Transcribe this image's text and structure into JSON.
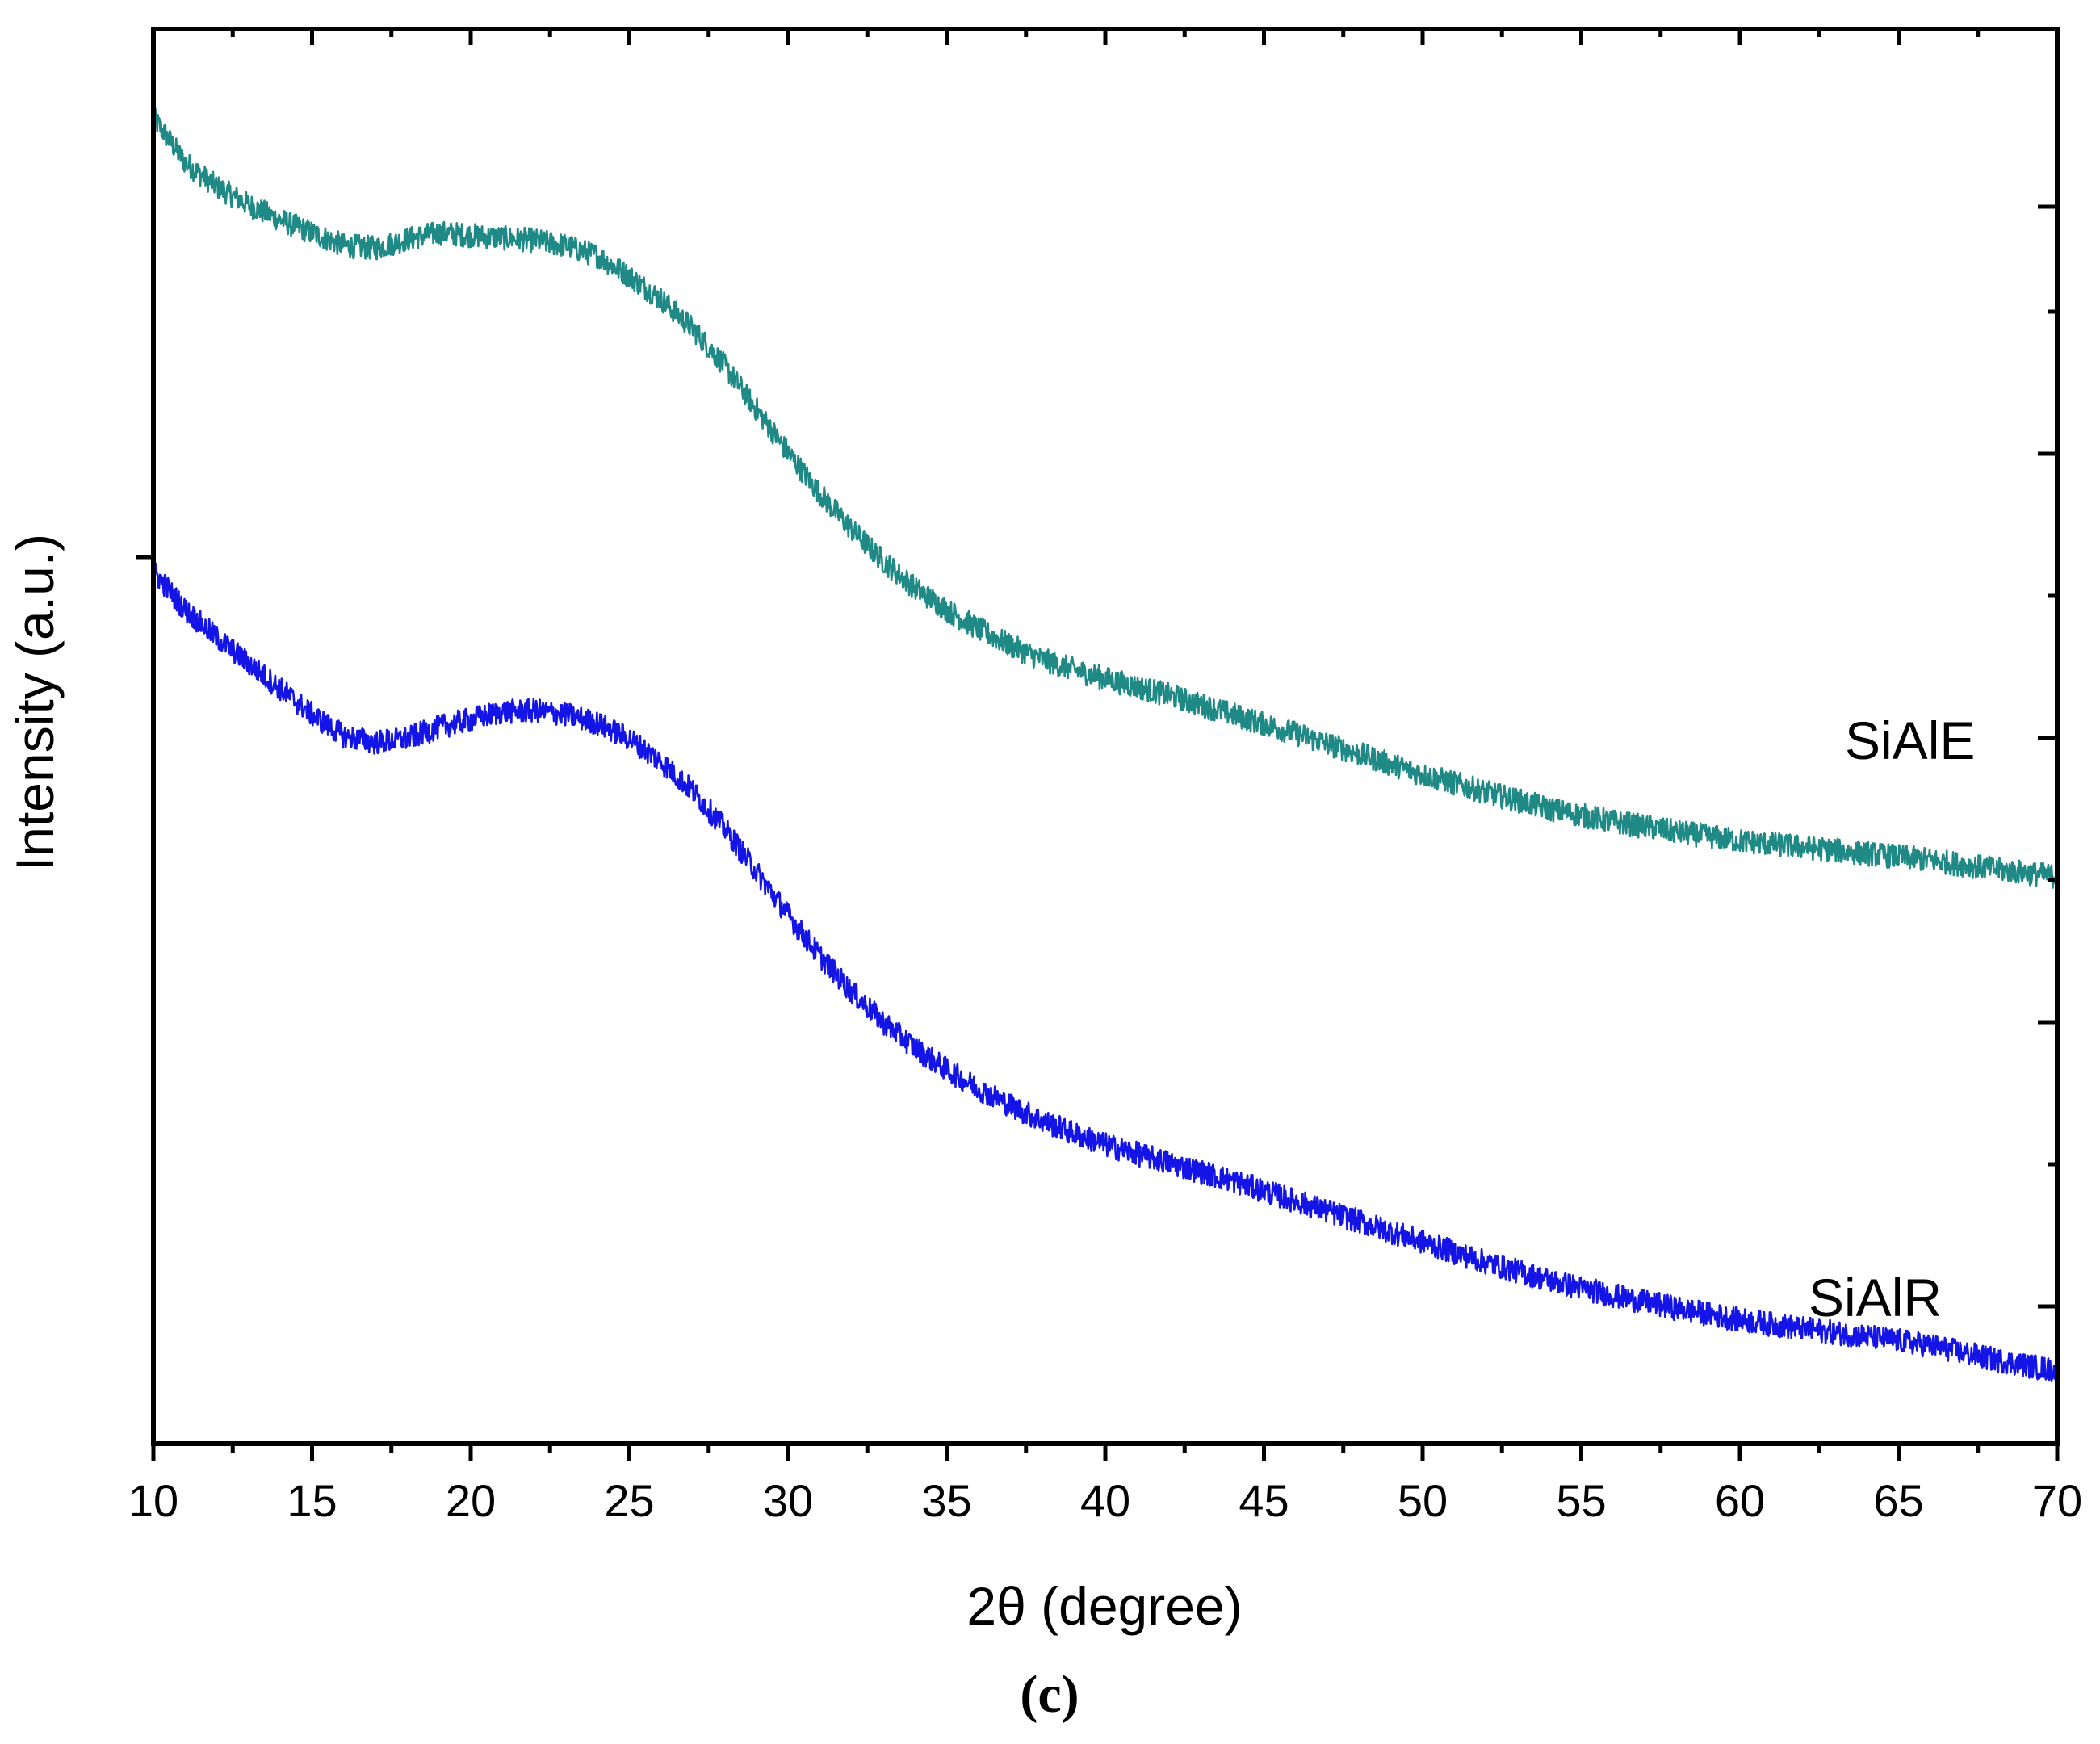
{
  "chart_data": {
    "type": "line",
    "title": "",
    "xlabel": "2θ (degree)",
    "ylabel": "Intensity (a.u.)",
    "xlim": [
      10,
      70
    ],
    "ylim": [
      0,
      100
    ],
    "x_ticks": [
      10,
      15,
      20,
      25,
      30,
      35,
      40,
      45,
      50,
      55,
      60,
      65,
      70
    ],
    "grid": false,
    "caption": "(c)",
    "series": [
      {
        "name": "SiAlE",
        "label": "SiAlE",
        "color": "#1f8a85",
        "points": [
          [
            10,
            100
          ],
          [
            11,
            96.5
          ],
          [
            12,
            94.6
          ],
          [
            13,
            93.2
          ],
          [
            14,
            92.0
          ],
          [
            15,
            91.0
          ],
          [
            16,
            90.0
          ],
          [
            17,
            89.8
          ],
          [
            18,
            90.5
          ],
          [
            19,
            91.0
          ],
          [
            20,
            90.8
          ],
          [
            21,
            90.6
          ],
          [
            22,
            90.4
          ],
          [
            23,
            90.0
          ],
          [
            24,
            89.2
          ],
          [
            25,
            87.6
          ],
          [
            26,
            85.8
          ],
          [
            27,
            83.5
          ],
          [
            28,
            80.6
          ],
          [
            29,
            77.2
          ],
          [
            30,
            73.8
          ],
          [
            31,
            70.6
          ],
          [
            32,
            67.8
          ],
          [
            33,
            65.3
          ],
          [
            34,
            63.2
          ],
          [
            35,
            61.5
          ],
          [
            36,
            60.0
          ],
          [
            37,
            58.7
          ],
          [
            38,
            57.6
          ],
          [
            39,
            56.8
          ],
          [
            40,
            56.1
          ],
          [
            42,
            54.8
          ],
          [
            44,
            53.3
          ],
          [
            46,
            51.8
          ],
          [
            48,
            50.2
          ],
          [
            50,
            48.6
          ],
          [
            52,
            47.2
          ],
          [
            54,
            45.9
          ],
          [
            56,
            44.9
          ],
          [
            58,
            44.1
          ],
          [
            60,
            43.4
          ],
          [
            62,
            42.9
          ],
          [
            64,
            42.4
          ],
          [
            66,
            41.9
          ],
          [
            68,
            41.2
          ],
          [
            70,
            40.6
          ]
        ]
      },
      {
        "name": "SiAlR",
        "label": "SiAlR",
        "color": "#1414e6",
        "points": [
          [
            10,
            64.5
          ],
          [
            11,
            61.5
          ],
          [
            12,
            59.3
          ],
          [
            13,
            57.3
          ],
          [
            14,
            55.3
          ],
          [
            15,
            53.3
          ],
          [
            16,
            51.6
          ],
          [
            17,
            51.1
          ],
          [
            18,
            51.4
          ],
          [
            19,
            52.3
          ],
          [
            20,
            52.9
          ],
          [
            21,
            53.5
          ],
          [
            22,
            53.6
          ],
          [
            23,
            53.3
          ],
          [
            24,
            52.6
          ],
          [
            25,
            51.4
          ],
          [
            26,
            49.6
          ],
          [
            27,
            47.3
          ],
          [
            28,
            44.4
          ],
          [
            29,
            41.0
          ],
          [
            30,
            37.6
          ],
          [
            31,
            34.4
          ],
          [
            32,
            31.6
          ],
          [
            33,
            29.2
          ],
          [
            34,
            27.2
          ],
          [
            35,
            25.5
          ],
          [
            36,
            24.0
          ],
          [
            37,
            22.7
          ],
          [
            38,
            21.5
          ],
          [
            39,
            20.5
          ],
          [
            40,
            19.6
          ],
          [
            42,
            18.2
          ],
          [
            44,
            16.8
          ],
          [
            46,
            15.2
          ],
          [
            48,
            13.6
          ],
          [
            50,
            12.0
          ],
          [
            52,
            10.4
          ],
          [
            54,
            9.0
          ],
          [
            56,
            7.8
          ],
          [
            58,
            6.8
          ],
          [
            60,
            5.9
          ],
          [
            62,
            5.2
          ],
          [
            64,
            4.6
          ],
          [
            66,
            3.9
          ],
          [
            68,
            2.8
          ],
          [
            70,
            1.9
          ]
        ]
      }
    ]
  }
}
